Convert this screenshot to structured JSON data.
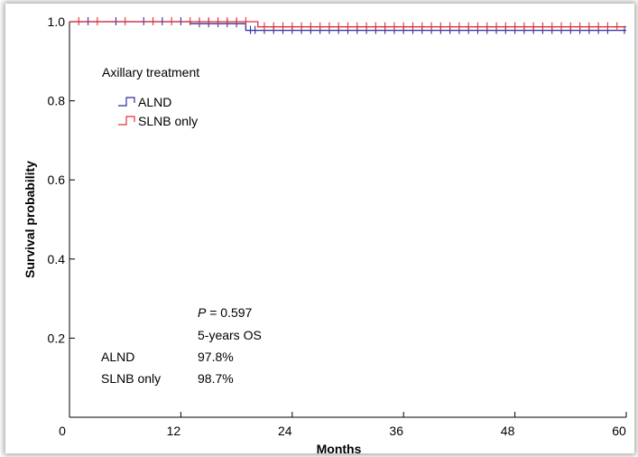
{
  "chart_data": {
    "type": "line",
    "subtype": "kaplan-meier",
    "xlabel": "Months",
    "ylabel": "Survival probability",
    "xlim": [
      0,
      60
    ],
    "ylim": [
      0,
      1.0
    ],
    "x_ticks": [
      "0",
      "12",
      "24",
      "36",
      "48",
      "60"
    ],
    "y_ticks": [
      "0.2",
      "0.4",
      "0.6",
      "0.8",
      "1.0"
    ],
    "grid": false,
    "legend": {
      "title": "Axillary treatment",
      "position": "top-left",
      "entries": [
        "ALND",
        "SLNB only"
      ]
    },
    "series": [
      {
        "name": "ALND",
        "color": "#2b2fa0",
        "steps": [
          [
            0,
            1.0
          ],
          [
            13,
            0.995
          ],
          [
            19,
            0.978
          ],
          [
            60,
            0.978
          ]
        ],
        "censor_x": [
          2,
          5,
          8,
          10,
          12,
          14,
          15,
          16,
          17,
          18,
          19.5,
          20,
          21,
          22,
          23,
          24,
          25,
          26,
          27,
          28,
          29,
          30,
          31,
          32,
          33,
          34,
          35,
          36,
          37,
          38,
          39,
          40,
          41,
          42,
          43,
          44,
          45,
          46,
          47,
          48,
          49,
          50,
          51,
          52,
          53,
          54,
          55,
          56,
          57,
          58,
          59.8
        ]
      },
      {
        "name": "SLNB only",
        "color": "#e0323a",
        "steps": [
          [
            0,
            1.0
          ],
          [
            20.3,
            0.987
          ],
          [
            60,
            0.987
          ]
        ],
        "censor_x": [
          1,
          3,
          6,
          9,
          11,
          13,
          14,
          15,
          16,
          17,
          18,
          19,
          21,
          22,
          23,
          24,
          25,
          26,
          27,
          28,
          29,
          30,
          31,
          32,
          33,
          34,
          35,
          36,
          37,
          38,
          39,
          40,
          41,
          42,
          43,
          44,
          45,
          46,
          47,
          48,
          49,
          50,
          51,
          52,
          53,
          54,
          55,
          56,
          57,
          58,
          59
        ]
      }
    ],
    "annotations": {
      "p_value_label": "P",
      "p_value_text": " = 0.597",
      "os_header": "5-years OS",
      "rows": [
        {
          "group": "ALND",
          "value": "97.8%"
        },
        {
          "group": "SLNB only",
          "value": "98.7%"
        }
      ]
    }
  }
}
